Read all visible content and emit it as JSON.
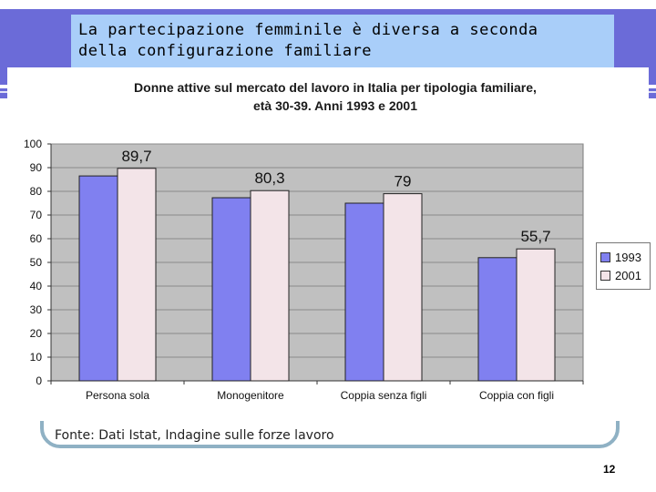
{
  "slide": {
    "title": "La partecipazione femminile è diversa a seconda\ndella configurazione familiare",
    "source": "Fonte: Dati Istat, Indagine sulle forze lavoro",
    "page_number": "12"
  },
  "colors": {
    "band": "#6b6bd8",
    "title_bg": "#a9cef9",
    "plot_bg": "#c0c0c0",
    "series_1993": "#8080f0",
    "series_2001": "#f3e4e8"
  },
  "chart_data": {
    "type": "bar",
    "title_line1": "Donne attive sul mercato del lavoro in Italia per tipologia familiare,",
    "title_line2": "età 30-39. Anni 1993 e 2001",
    "categories": [
      "Persona sola",
      "Monogenitore",
      "Coppia senza figli",
      "Coppia con figli"
    ],
    "series": [
      {
        "name": "1993",
        "values": [
          86.5,
          77.3,
          75.0,
          52.0
        ],
        "labels": [
          "",
          "",
          "",
          ""
        ]
      },
      {
        "name": "2001",
        "values": [
          89.7,
          80.3,
          79,
          55.7
        ],
        "labels": [
          "89,7",
          "80,3",
          "79",
          "55,7"
        ]
      }
    ],
    "ylim": [
      0,
      100
    ],
    "yticks": [
      0,
      10,
      20,
      30,
      40,
      50,
      60,
      70,
      80,
      90,
      100
    ],
    "grid": true,
    "legend": "right",
    "xlabel": "",
    "ylabel": ""
  }
}
